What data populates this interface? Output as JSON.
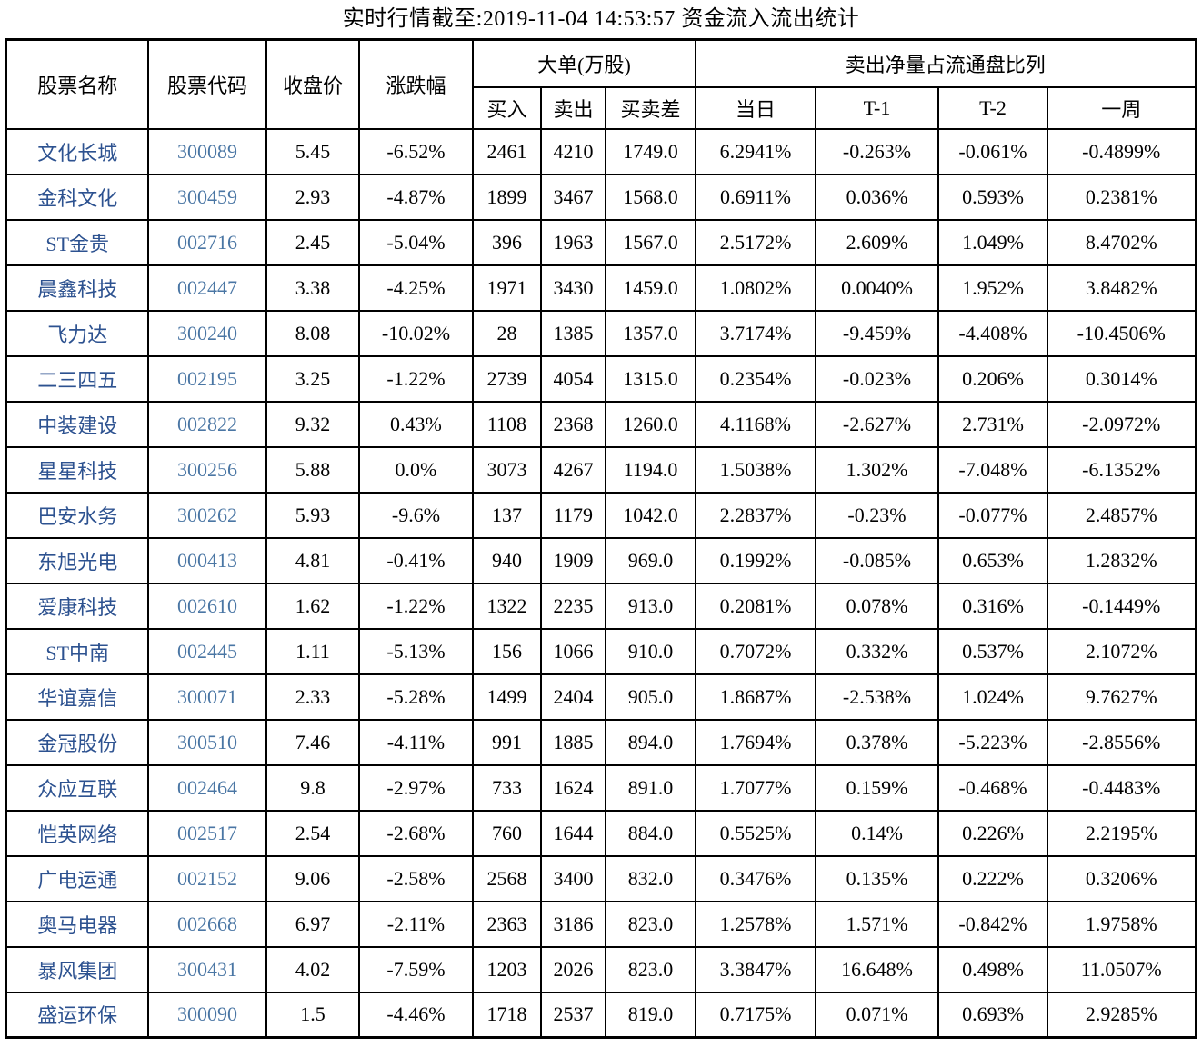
{
  "title": "实时行情截至:2019-11-04 14:53:57 资金流入流出统计",
  "colors": {
    "stock_name": "#2D5290",
    "stock_code": "#4A76A4",
    "border": "#000000",
    "text": "#000000",
    "background": "#FFFFFF"
  },
  "table": {
    "headers": {
      "name": "股票名称",
      "code": "股票代码",
      "close": "收盘价",
      "change": "涨跌幅",
      "big_order_group": "大单(万股)",
      "buy": "买入",
      "sell": "卖出",
      "diff": "买卖差",
      "net_sell_group": "卖出净量占流通盘比列",
      "day": "当日",
      "t1": "T-1",
      "t2": "T-2",
      "week": "一周"
    },
    "rows": [
      [
        "文化长城",
        "300089",
        "5.45",
        "-6.52%",
        "2461",
        "4210",
        "1749.0",
        "6.2941%",
        "-0.263%",
        "-0.061%",
        "-0.4899%"
      ],
      [
        "金科文化",
        "300459",
        "2.93",
        "-4.87%",
        "1899",
        "3467",
        "1568.0",
        "0.6911%",
        "0.036%",
        "0.593%",
        "0.2381%"
      ],
      [
        "ST金贵",
        "002716",
        "2.45",
        "-5.04%",
        "396",
        "1963",
        "1567.0",
        "2.5172%",
        "2.609%",
        "1.049%",
        "8.4702%"
      ],
      [
        "晨鑫科技",
        "002447",
        "3.38",
        "-4.25%",
        "1971",
        "3430",
        "1459.0",
        "1.0802%",
        "0.0040%",
        "1.952%",
        "3.8482%"
      ],
      [
        "飞力达",
        "300240",
        "8.08",
        "-10.02%",
        "28",
        "1385",
        "1357.0",
        "3.7174%",
        "-9.459%",
        "-4.408%",
        "-10.4506%"
      ],
      [
        "二三四五",
        "002195",
        "3.25",
        "-1.22%",
        "2739",
        "4054",
        "1315.0",
        "0.2354%",
        "-0.023%",
        "0.206%",
        "0.3014%"
      ],
      [
        "中装建设",
        "002822",
        "9.32",
        "0.43%",
        "1108",
        "2368",
        "1260.0",
        "4.1168%",
        "-2.627%",
        "2.731%",
        "-2.0972%"
      ],
      [
        "星星科技",
        "300256",
        "5.88",
        "0.0%",
        "3073",
        "4267",
        "1194.0",
        "1.5038%",
        "1.302%",
        "-7.048%",
        "-6.1352%"
      ],
      [
        "巴安水务",
        "300262",
        "5.93",
        "-9.6%",
        "137",
        "1179",
        "1042.0",
        "2.2837%",
        "-0.23%",
        "-0.077%",
        "2.4857%"
      ],
      [
        "东旭光电",
        "000413",
        "4.81",
        "-0.41%",
        "940",
        "1909",
        "969.0",
        "0.1992%",
        "-0.085%",
        "0.653%",
        "1.2832%"
      ],
      [
        "爱康科技",
        "002610",
        "1.62",
        "-1.22%",
        "1322",
        "2235",
        "913.0",
        "0.2081%",
        "0.078%",
        "0.316%",
        "-0.1449%"
      ],
      [
        "ST中南",
        "002445",
        "1.11",
        "-5.13%",
        "156",
        "1066",
        "910.0",
        "0.7072%",
        "0.332%",
        "0.537%",
        "2.1072%"
      ],
      [
        "华谊嘉信",
        "300071",
        "2.33",
        "-5.28%",
        "1499",
        "2404",
        "905.0",
        "1.8687%",
        "-2.538%",
        "1.024%",
        "9.7627%"
      ],
      [
        "金冠股份",
        "300510",
        "7.46",
        "-4.11%",
        "991",
        "1885",
        "894.0",
        "1.7694%",
        "0.378%",
        "-5.223%",
        "-2.8556%"
      ],
      [
        "众应互联",
        "002464",
        "9.8",
        "-2.97%",
        "733",
        "1624",
        "891.0",
        "1.7077%",
        "0.159%",
        "-0.468%",
        "-0.4483%"
      ],
      [
        "恺英网络",
        "002517",
        "2.54",
        "-2.68%",
        "760",
        "1644",
        "884.0",
        "0.5525%",
        "0.14%",
        "0.226%",
        "2.2195%"
      ],
      [
        "广电运通",
        "002152",
        "9.06",
        "-2.58%",
        "2568",
        "3400",
        "832.0",
        "0.3476%",
        "0.135%",
        "0.222%",
        "0.3206%"
      ],
      [
        "奥马电器",
        "002668",
        "6.97",
        "-2.11%",
        "2363",
        "3186",
        "823.0",
        "1.2578%",
        "1.571%",
        "-0.842%",
        "1.9758%"
      ],
      [
        "暴风集团",
        "300431",
        "4.02",
        "-7.59%",
        "1203",
        "2026",
        "823.0",
        "3.3847%",
        "16.648%",
        "0.498%",
        "11.0507%"
      ],
      [
        "盛运环保",
        "300090",
        "1.5",
        "-4.46%",
        "1718",
        "2537",
        "819.0",
        "0.7175%",
        "0.071%",
        "0.693%",
        "2.9285%"
      ]
    ],
    "column_cell_names": [
      "stock-name-cell",
      "stock-code-cell",
      "close-price-cell",
      "change-percent-cell",
      "buy-volume-cell",
      "sell-volume-cell",
      "buy-sell-diff-cell",
      "day-percent-cell",
      "t1-percent-cell",
      "t2-percent-cell",
      "week-percent-cell"
    ]
  }
}
